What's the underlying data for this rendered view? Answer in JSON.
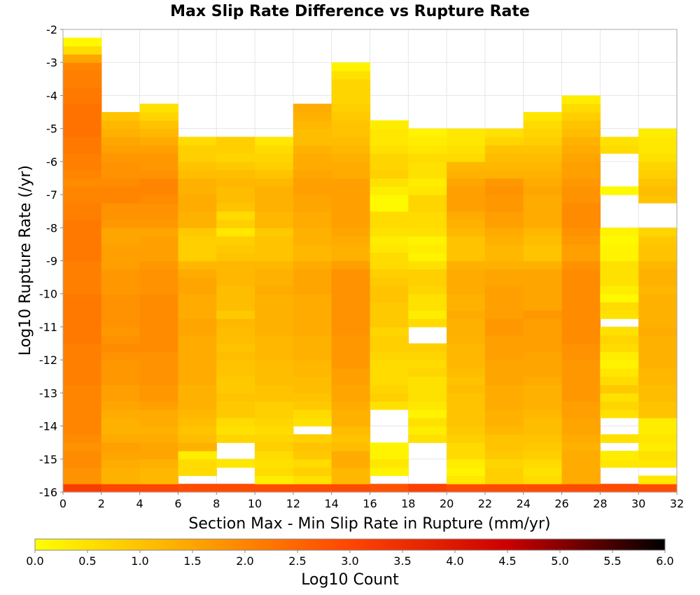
{
  "chart_data": {
    "type": "heatmap",
    "title": "Max Slip Rate Difference vs Rupture Rate",
    "xlabel": "Section Max - Min Slip Rate in Rupture (mm/yr)",
    "ylabel": "Log10 Rupture Rate (/yr)",
    "xlim": [
      0,
      32
    ],
    "ylim": [
      -16,
      -2
    ],
    "xticks": [
      "0",
      "2",
      "4",
      "6",
      "8",
      "10",
      "12",
      "14",
      "16",
      "18",
      "20",
      "22",
      "24",
      "26",
      "28",
      "30",
      "32"
    ],
    "yticks": [
      "-16",
      "-15",
      "-14",
      "-13",
      "-12",
      "-11",
      "-10",
      "-9",
      "-8",
      "-7",
      "-6",
      "-5",
      "-4",
      "-3",
      "-2"
    ],
    "x_bin_width": 2,
    "y_bin_width": 0.25,
    "y_bin_start": -16,
    "grid": true,
    "colorbar": {
      "label": "Log10 Count",
      "min": 0,
      "max": 6,
      "ticks": [
        "0.0",
        "0.5",
        "1.0",
        "1.5",
        "2.0",
        "2.5",
        "3.0",
        "3.5",
        "4.0",
        "4.5",
        "5.0",
        "5.5",
        "6.0"
      ],
      "colors": [
        "#ffff00",
        "#ffa500",
        "#ff4500",
        "#cc0000",
        "#000000"
      ]
    },
    "columns": [
      {
        "x": 1,
        "values": [
          3.2,
          1.8,
          1.8,
          1.9,
          1.9,
          1.8,
          1.9,
          2.0,
          2.0,
          2.0,
          2.0,
          2.0,
          2.0,
          2.1,
          2.1,
          2.1,
          2.1,
          2.1,
          2.2,
          2.2,
          2.2,
          2.2,
          2.2,
          2.2,
          2.1,
          2.1,
          2.1,
          2.1,
          2.2,
          2.2,
          2.2,
          2.2,
          2.2,
          2.1,
          2.1,
          2.0,
          2.0,
          1.9,
          2.0,
          2.1,
          2.1,
          2.2,
          2.2,
          2.3,
          2.3,
          2.3,
          2.3,
          2.2,
          2.2,
          2.1,
          2.1,
          2.0,
          1.5,
          0.6,
          0.1,
          null
        ]
      },
      {
        "x": 3,
        "values": [
          3.0,
          1.3,
          1.3,
          1.4,
          1.5,
          1.6,
          1.4,
          1.3,
          1.3,
          1.4,
          1.5,
          1.6,
          1.6,
          1.7,
          1.7,
          1.7,
          1.8,
          1.9,
          1.8,
          1.7,
          1.8,
          1.8,
          1.8,
          1.8,
          1.7,
          1.7,
          1.7,
          1.6,
          1.6,
          1.6,
          1.5,
          1.5,
          1.7,
          1.8,
          1.8,
          2.0,
          2.0,
          1.9,
          1.8,
          1.8,
          1.7,
          1.6,
          1.5,
          1.3,
          1.2,
          1.0,
          null,
          null,
          null,
          null,
          null,
          null,
          null,
          null,
          null,
          null
        ]
      },
      {
        "x": 5,
        "values": [
          3.0,
          1.2,
          1.2,
          1.3,
          1.5,
          1.5,
          1.4,
          1.3,
          1.4,
          1.4,
          1.6,
          1.7,
          1.7,
          1.8,
          1.8,
          1.8,
          1.8,
          1.9,
          1.9,
          1.9,
          1.9,
          1.9,
          1.9,
          1.9,
          1.8,
          1.8,
          1.8,
          1.7,
          1.6,
          1.6,
          1.6,
          1.5,
          1.7,
          1.8,
          1.8,
          1.9,
          2.0,
          2.0,
          1.8,
          1.7,
          1.7,
          1.6,
          1.4,
          1.2,
          1.0,
          0.7,
          0.5,
          null,
          null,
          null,
          null,
          null,
          null,
          null,
          null,
          null
        ]
      },
      {
        "x": 7,
        "values": [
          2.9,
          null,
          0.6,
          0.6,
          0.3,
          1.3,
          1.1,
          1.0,
          1.1,
          1.2,
          1.3,
          1.3,
          1.3,
          1.4,
          1.4,
          1.4,
          1.4,
          1.4,
          1.4,
          1.5,
          1.5,
          1.4,
          1.4,
          1.4,
          1.5,
          1.5,
          1.4,
          1.2,
          0.8,
          0.8,
          0.8,
          0.9,
          1.3,
          1.3,
          1.4,
          1.4,
          1.3,
          1.3,
          1.1,
          1.0,
          0.8,
          0.8,
          0.6,
          null,
          null,
          null,
          null,
          null,
          null,
          null,
          null,
          null,
          null,
          null,
          null,
          null
        ]
      },
      {
        "x": 9,
        "values": [
          2.9,
          null,
          null,
          0.4,
          null,
          null,
          0.7,
          0.5,
          0.6,
          0.9,
          0.9,
          1.0,
          0.9,
          0.9,
          1.0,
          1.0,
          1.1,
          1.0,
          1.1,
          1.1,
          1.2,
          0.9,
          1.1,
          1.1,
          1.1,
          1.2,
          1.2,
          1.2,
          1.0,
          0.9,
          0.8,
          0.4,
          0.8,
          0.6,
          1.0,
          1.1,
          1.1,
          1.2,
          1.1,
          0.9,
          0.7,
          0.8,
          0.8,
          null,
          null,
          null,
          null,
          null,
          null,
          null,
          null,
          null,
          null,
          null,
          null,
          null
        ]
      },
      {
        "x": 11,
        "values": [
          2.9,
          0.3,
          0.6,
          0.5,
          0.6,
          0.8,
          0.7,
          0.6,
          0.7,
          0.8,
          0.8,
          1.0,
          1.0,
          1.1,
          1.1,
          1.1,
          1.2,
          1.2,
          1.2,
          1.3,
          1.3,
          1.3,
          1.3,
          1.3,
          1.4,
          1.3,
          1.3,
          1.2,
          1.0,
          1.0,
          1.0,
          0.9,
          1.2,
          1.2,
          1.3,
          1.3,
          1.3,
          1.2,
          1.0,
          0.8,
          0.7,
          0.6,
          0.4,
          null,
          null,
          null,
          null,
          null,
          null,
          null,
          null,
          null,
          null,
          null,
          null,
          null
        ]
      },
      {
        "x": 13,
        "values": [
          2.9,
          0.5,
          0.8,
          0.6,
          0.9,
          1.0,
          0.8,
          null,
          0.5,
          0.6,
          0.9,
          1.0,
          1.1,
          1.1,
          1.2,
          1.2,
          1.3,
          1.3,
          1.3,
          1.4,
          1.4,
          1.4,
          1.4,
          1.4,
          1.5,
          1.5,
          1.5,
          1.4,
          1.2,
          1.2,
          1.3,
          1.3,
          1.4,
          1.4,
          1.5,
          1.5,
          1.6,
          1.6,
          1.5,
          1.4,
          1.4,
          1.3,
          1.1,
          1.1,
          1.2,
          1.3,
          1.4,
          null,
          null,
          null,
          null,
          null,
          null,
          null,
          null,
          null
        ]
      },
      {
        "x": 15,
        "values": [
          2.9,
          1.2,
          1.2,
          1.4,
          1.4,
          1.1,
          1.0,
          1.1,
          1.3,
          1.3,
          1.4,
          1.5,
          1.5,
          1.6,
          1.6,
          1.7,
          1.7,
          1.7,
          1.7,
          1.8,
          1.8,
          1.8,
          1.8,
          1.8,
          1.8,
          1.8,
          1.8,
          1.6,
          1.3,
          1.3,
          1.4,
          1.5,
          1.6,
          1.6,
          1.6,
          1.6,
          1.6,
          1.6,
          1.4,
          1.4,
          1.3,
          1.2,
          1.1,
          1.0,
          1.0,
          0.9,
          0.8,
          0.7,
          0.7,
          0.7,
          0.5,
          0.2,
          null,
          null,
          null,
          null
        ]
      },
      {
        "x": 17,
        "values": [
          2.8,
          null,
          0.2,
          0.4,
          0.2,
          0.2,
          null,
          null,
          null,
          null,
          0.5,
          0.8,
          0.7,
          0.6,
          0.6,
          0.6,
          0.7,
          0.8,
          0.8,
          0.7,
          0.9,
          0.9,
          0.9,
          1.0,
          1.0,
          0.9,
          0.8,
          0.6,
          0.6,
          0.4,
          0.3,
          0.5,
          0.6,
          0.6,
          0.1,
          0.1,
          0.3,
          0.5,
          0.8,
          0.7,
          0.7,
          0.5,
          0.4,
          0.4,
          0.3,
          null,
          null,
          null,
          null,
          null,
          null,
          null,
          null,
          null,
          null,
          null
        ]
      },
      {
        "x": 19,
        "values": [
          3.1,
          null,
          null,
          null,
          null,
          null,
          0.5,
          0.3,
          0.5,
          0.2,
          0.4,
          0.5,
          0.5,
          0.5,
          0.7,
          0.6,
          0.7,
          0.8,
          null,
          null,
          0.6,
          0.3,
          0.5,
          0.5,
          0.7,
          0.8,
          0.8,
          0.5,
          0.2,
          0.3,
          0.2,
          0.5,
          0.6,
          0.6,
          0.7,
          0.7,
          0.4,
          0.3,
          0.5,
          0.5,
          0.6,
          0.4,
          0.3,
          0.2,
          null,
          null,
          null,
          null,
          null,
          null,
          null,
          null,
          null,
          null,
          null,
          null
        ]
      },
      {
        "x": 21,
        "values": [
          2.9,
          0.4,
          0.2,
          0.3,
          0.6,
          0.6,
          0.8,
          0.9,
          1.0,
          1.0,
          1.0,
          1.0,
          1.1,
          1.0,
          1.1,
          1.2,
          1.2,
          1.2,
          1.3,
          1.3,
          1.3,
          1.4,
          1.3,
          1.3,
          1.4,
          1.4,
          1.4,
          1.3,
          1.0,
          1.0,
          1.0,
          1.2,
          1.3,
          1.4,
          1.6,
          1.6,
          1.6,
          1.5,
          1.3,
          1.2,
          0.6,
          0.5,
          0.4,
          0.4,
          null,
          null,
          null,
          null,
          null,
          null,
          null,
          null,
          null,
          null,
          null,
          null
        ]
      },
      {
        "x": 23,
        "values": [
          2.9,
          0.8,
          0.8,
          0.7,
          0.9,
          1.0,
          1.0,
          1.2,
          1.3,
          1.3,
          1.4,
          1.4,
          1.4,
          1.5,
          1.5,
          1.5,
          1.6,
          1.6,
          1.6,
          1.7,
          1.7,
          1.6,
          1.6,
          1.6,
          1.6,
          1.5,
          1.5,
          1.3,
          1.2,
          1.2,
          1.3,
          1.4,
          1.6,
          1.6,
          1.7,
          1.7,
          1.8,
          1.7,
          1.3,
          1.2,
          1.1,
          1.0,
          0.7,
          0.5,
          null,
          null,
          null,
          null,
          null,
          null,
          null,
          null,
          null,
          null,
          null,
          null
        ]
      },
      {
        "x": 25,
        "values": [
          2.9,
          0.6,
          0.5,
          0.6,
          0.8,
          0.9,
          1.0,
          1.1,
          1.1,
          1.2,
          1.3,
          1.3,
          1.3,
          1.4,
          1.5,
          1.5,
          1.5,
          1.6,
          1.6,
          1.6,
          1.6,
          1.7,
          1.5,
          1.5,
          1.5,
          1.5,
          1.5,
          1.3,
          1.0,
          1.0,
          1.1,
          1.2,
          1.4,
          1.4,
          1.4,
          1.4,
          1.5,
          1.4,
          1.3,
          1.2,
          1.1,
          1.0,
          0.8,
          0.7,
          0.6,
          0.4,
          null,
          null,
          null,
          null,
          null,
          null,
          null,
          null,
          null,
          null
        ]
      },
      {
        "x": 27,
        "values": [
          2.9,
          1.4,
          1.4,
          1.4,
          1.4,
          1.3,
          1.4,
          1.5,
          1.5,
          1.6,
          1.6,
          1.7,
          1.7,
          1.7,
          1.7,
          1.7,
          1.8,
          1.8,
          1.9,
          1.9,
          1.9,
          1.9,
          1.9,
          1.9,
          1.9,
          1.9,
          1.9,
          1.8,
          1.6,
          1.6,
          1.7,
          1.8,
          1.9,
          1.9,
          1.9,
          1.8,
          1.8,
          1.7,
          1.6,
          1.6,
          1.5,
          1.4,
          1.3,
          1.1,
          1.0,
          0.8,
          0.6,
          0.3,
          null,
          null,
          null,
          null,
          null,
          null,
          null,
          null
        ]
      },
      {
        "x": 29,
        "values": [
          2.9,
          null,
          null,
          0.4,
          0.3,
          null,
          0.5,
          null,
          null,
          0.5,
          0.7,
          0.5,
          0.9,
          0.6,
          0.4,
          0.2,
          0.3,
          0.6,
          0.7,
          0.5,
          null,
          0.5,
          0.6,
          0.1,
          0.3,
          0.5,
          0.5,
          0.5,
          0.2,
          0.2,
          0.1,
          0.2,
          null,
          null,
          null,
          null,
          0.1,
          null,
          null,
          null,
          null,
          0.6,
          0.5,
          null,
          null,
          null,
          null,
          null,
          null,
          null,
          null,
          null,
          null,
          null,
          null,
          null
        ]
      },
      {
        "x": 31,
        "values": [
          2.9,
          0.4,
          null,
          0.4,
          0.5,
          0.3,
          0.4,
          0.3,
          0.3,
          1.0,
          1.0,
          1.1,
          1.1,
          1.2,
          1.2,
          1.3,
          1.3,
          1.3,
          1.3,
          1.4,
          1.3,
          1.3,
          1.3,
          1.3,
          1.2,
          1.3,
          1.3,
          1.2,
          1.0,
          1.0,
          0.9,
          0.7,
          null,
          null,
          null,
          1.0,
          1.1,
          1.0,
          0.8,
          0.7,
          0.5,
          0.4,
          0.4,
          0.3,
          null,
          null,
          null,
          null,
          null,
          null,
          null,
          null,
          null,
          null,
          null,
          null
        ]
      }
    ]
  }
}
